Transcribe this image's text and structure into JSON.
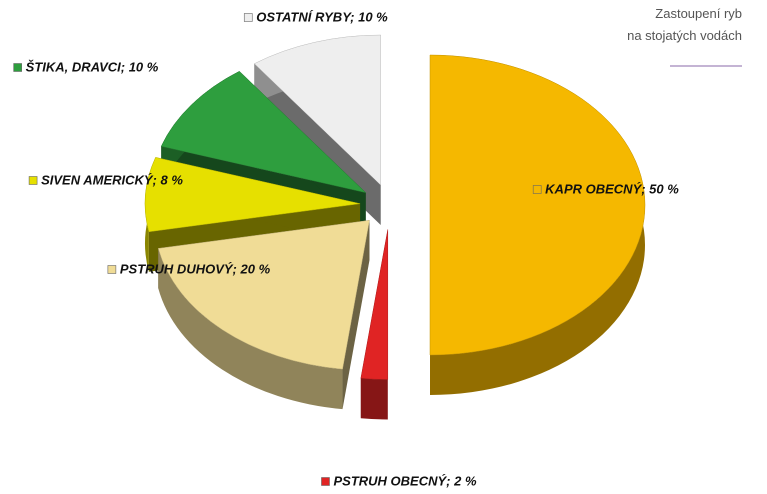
{
  "chart_data": {
    "type": "pie3d",
    "title": [
      "Zastoupení ryb",
      "na stojatých vodách"
    ],
    "values": [
      50,
      2,
      20,
      8,
      10,
      10
    ],
    "value_labels": [
      "KAPR OBECNÝ; 50 %",
      "PSTRUH OBECNÝ; 2 %",
      "PSTRUH DUHOVÝ; 20 %",
      "SIVEN AMERICKÝ; 8 %",
      "ŠTIKA, DRAVCI; 10 %",
      "OSTATNÍ RYBY; 10 %"
    ],
    "colors": [
      "#f5b800",
      "#e02424",
      "#f0dc96",
      "#e6e000",
      "#2e9e3e",
      "#eeeeee"
    ]
  }
}
